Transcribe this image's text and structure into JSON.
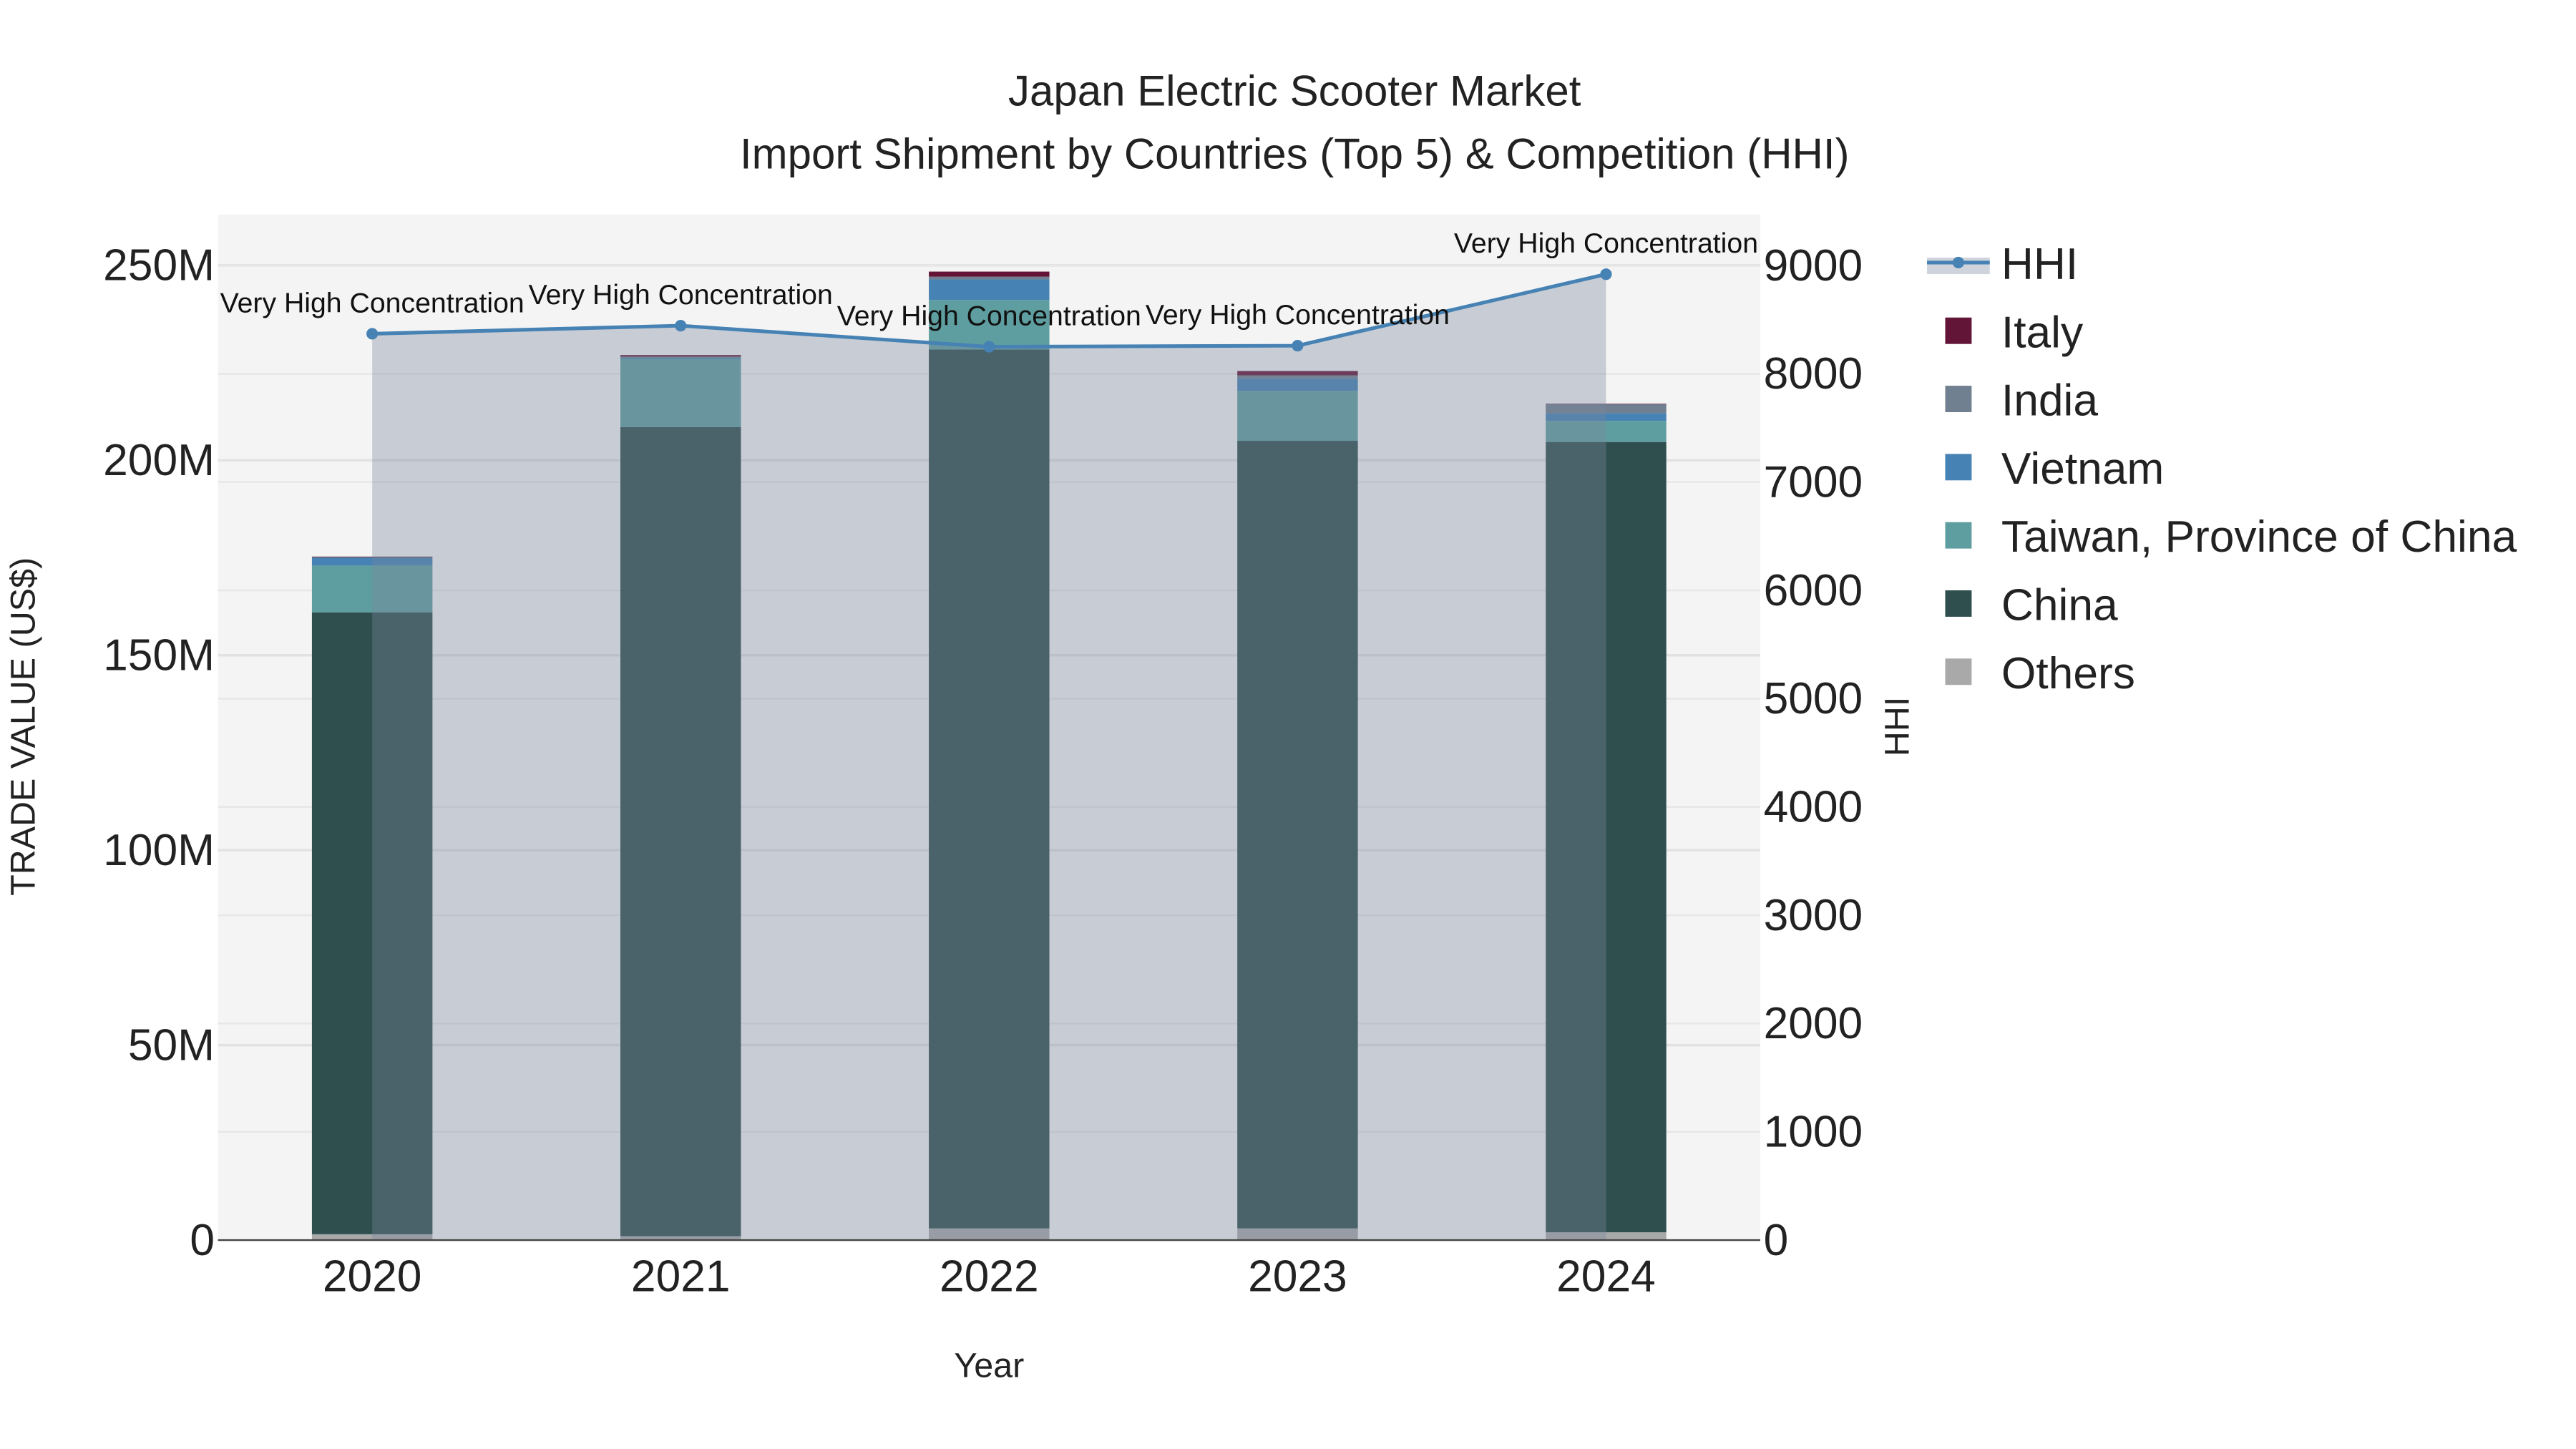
{
  "chart_data": {
    "type": "bar",
    "title_line1": "Japan Electric Scooter Market",
    "title_line2": "Import Shipment by Countries (Top 5) & Competition (HHI)",
    "xlabel": "Year",
    "ylabel": "TRADE VALUE (US$)",
    "y2label": "HHI",
    "categories": [
      "2020",
      "2021",
      "2022",
      "2023",
      "2024"
    ],
    "ylim": [
      0,
      263000000
    ],
    "y2lim": [
      0,
      9470
    ],
    "yticks": [
      {
        "v": 0,
        "label": "0"
      },
      {
        "v": 50000000,
        "label": "50M"
      },
      {
        "v": 100000000,
        "label": "100M"
      },
      {
        "v": 150000000,
        "label": "150M"
      },
      {
        "v": 200000000,
        "label": "200M"
      },
      {
        "v": 250000000,
        "label": "250M"
      }
    ],
    "y2ticks": [
      0,
      1000,
      2000,
      3000,
      4000,
      5000,
      6000,
      7000,
      8000,
      9000
    ],
    "series": [
      {
        "name": "Others",
        "color": "#a9a9a9",
        "values": [
          1500000,
          1000000,
          3000000,
          3000000,
          2000000
        ]
      },
      {
        "name": "China",
        "color": "#2f4f4f",
        "values": [
          159500000,
          207500000,
          225400000,
          202000000,
          202700000
        ]
      },
      {
        "name": "Taiwan, Province of China",
        "color": "#5f9ea0",
        "values": [
          12000000,
          17500000,
          12700000,
          12800000,
          5400000
        ]
      },
      {
        "name": "Vietnam",
        "color": "#4682b4",
        "values": [
          2000000,
          300000,
          5300000,
          3100000,
          2000000
        ]
      },
      {
        "name": "India",
        "color": "#708090",
        "values": [
          200000,
          300000,
          700000,
          900000,
          2300000
        ]
      },
      {
        "name": "Italy",
        "color": "#631537",
        "values": [
          100000,
          400000,
          1300000,
          1100000,
          100000
        ]
      }
    ],
    "hhi": {
      "name": "HHI",
      "color": "#4682b4",
      "values": [
        8370,
        8445,
        8250,
        8260,
        8920
      ],
      "annotations": [
        "Very High Concentration",
        "Very High Concentration",
        "Very High Concentration",
        "Very High Concentration",
        "Very High Concentration"
      ]
    },
    "legend": [
      "HHI",
      "Italy",
      "India",
      "Vietnam",
      "Taiwan, Province of China",
      "China",
      "Others"
    ],
    "legend_placement": "right",
    "grid": true
  }
}
